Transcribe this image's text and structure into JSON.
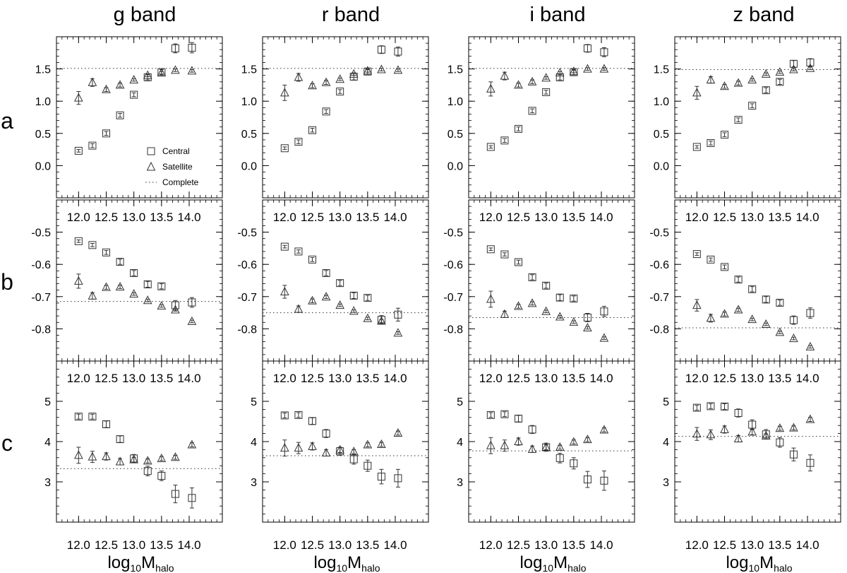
{
  "chart_data": {
    "type": "scatter",
    "panel_grid": {
      "rows": 3,
      "cols": 4
    },
    "columns": [
      "g band",
      "r band",
      "i band",
      "z band"
    ],
    "rows": [
      "a",
      "b",
      "c"
    ],
    "xlabel": {
      "main": "log",
      "sub": "10",
      "var": "M",
      "var_sub": "halo"
    },
    "x_ticks": [
      "12.0",
      "12.5",
      "13.0",
      "13.5",
      "14.0"
    ],
    "xlim": [
      11.6,
      14.6
    ],
    "row_axes": [
      {
        "ylim": [
          -0.5,
          2.0
        ],
        "yticks": [
          0.0,
          0.5,
          1.0,
          1.5
        ],
        "ytick_labels": [
          "0.0",
          "0.5",
          "1.0",
          "1.5"
        ],
        "minor_step": 0.1
      },
      {
        "ylim": [
          -0.9,
          -0.4
        ],
        "yticks": [
          -0.8,
          -0.7,
          -0.6,
          -0.5
        ],
        "ytick_labels": [
          "-0.8",
          "-0.7",
          "-0.6",
          "-0.5"
        ],
        "minor_step": 0.02
      },
      {
        "ylim": [
          2.0,
          6.0
        ],
        "yticks": [
          3,
          4,
          5
        ],
        "ytick_labels": [
          "3",
          "4",
          "5"
        ],
        "minor_step": 0.2
      }
    ],
    "inner_tick_rows": [
      1,
      2
    ],
    "legend": {
      "location": "a/g band panel, lower right",
      "entries": [
        {
          "marker": "square",
          "label": "Central"
        },
        {
          "marker": "triangle",
          "label": "Satellite"
        },
        {
          "marker": "dotted-line",
          "label": "Complete"
        }
      ]
    },
    "central_x": [
      12.0,
      12.25,
      12.5,
      12.75,
      13.0,
      13.25,
      13.5,
      13.75,
      14.05
    ],
    "satellite_x": [
      12.0,
      12.25,
      12.5,
      12.75,
      13.0,
      13.25,
      13.5,
      13.75,
      14.05
    ],
    "panels": [
      {
        "row": 0,
        "col": 0,
        "complete": 1.51,
        "central": {
          "y": [
            0.23,
            0.31,
            0.5,
            0.78,
            1.1,
            1.37,
            1.45,
            1.82,
            1.83
          ],
          "err": [
            0.02,
            0.03,
            0.03,
            0.03,
            0.03,
            0.04,
            0.04,
            0.07,
            0.08
          ]
        },
        "satellite": {
          "y": [
            1.05,
            1.29,
            1.18,
            1.25,
            1.33,
            1.4,
            1.44,
            1.48,
            1.47
          ],
          "err": [
            0.1,
            0.06,
            0.03,
            0.03,
            0.02,
            0.02,
            0.02,
            0.02,
            0.02
          ]
        }
      },
      {
        "row": 0,
        "col": 1,
        "complete": 1.51,
        "central": {
          "y": [
            0.27,
            0.37,
            0.55,
            0.84,
            1.15,
            1.38,
            1.46,
            1.8,
            1.77
          ],
          "err": [
            0.02,
            0.03,
            0.03,
            0.03,
            0.03,
            0.05,
            0.04,
            0.06,
            0.07
          ]
        },
        "satellite": {
          "y": [
            1.13,
            1.37,
            1.24,
            1.29,
            1.34,
            1.42,
            1.47,
            1.49,
            1.48
          ],
          "err": [
            0.12,
            0.06,
            0.03,
            0.03,
            0.02,
            0.02,
            0.02,
            0.02,
            0.02
          ]
        }
      },
      {
        "row": 0,
        "col": 2,
        "complete": 1.51,
        "central": {
          "y": [
            0.29,
            0.39,
            0.57,
            0.85,
            1.14,
            1.37,
            1.45,
            1.82,
            1.76
          ],
          "err": [
            0.02,
            0.03,
            0.03,
            0.03,
            0.03,
            0.04,
            0.04,
            0.06,
            0.07
          ]
        },
        "satellite": {
          "y": [
            1.19,
            1.39,
            1.25,
            1.3,
            1.36,
            1.44,
            1.46,
            1.5,
            1.5
          ],
          "err": [
            0.11,
            0.06,
            0.03,
            0.03,
            0.02,
            0.02,
            0.02,
            0.02,
            0.02
          ]
        }
      },
      {
        "row": 0,
        "col": 3,
        "complete": 1.49,
        "central": {
          "y": [
            0.29,
            0.35,
            0.48,
            0.71,
            0.93,
            1.17,
            1.3,
            1.58,
            1.6
          ],
          "err": [
            0.02,
            0.03,
            0.03,
            0.03,
            0.03,
            0.04,
            0.04,
            0.05,
            0.06
          ]
        },
        "satellite": {
          "y": [
            1.13,
            1.33,
            1.23,
            1.28,
            1.33,
            1.42,
            1.45,
            1.49,
            1.51
          ],
          "err": [
            0.1,
            0.05,
            0.03,
            0.03,
            0.02,
            0.02,
            0.02,
            0.02,
            0.02
          ]
        }
      },
      {
        "row": 1,
        "col": 0,
        "complete": -0.715,
        "central": {
          "y": [
            -0.528,
            -0.54,
            -0.563,
            -0.592,
            -0.627,
            -0.662,
            -0.668,
            -0.727,
            -0.718
          ],
          "err": [
            0.004,
            0.005,
            0.006,
            0.008,
            0.008,
            0.009,
            0.008,
            0.015,
            0.015
          ]
        },
        "satellite": {
          "y": [
            -0.652,
            -0.698,
            -0.671,
            -0.67,
            -0.692,
            -0.712,
            -0.729,
            -0.741,
            -0.777
          ],
          "err": [
            0.022,
            0.01,
            0.006,
            0.005,
            0.004,
            0.004,
            0.004,
            0.004,
            0.004
          ]
        }
      },
      {
        "row": 1,
        "col": 1,
        "complete": -0.75,
        "central": {
          "y": [
            -0.545,
            -0.56,
            -0.585,
            -0.627,
            -0.658,
            -0.697,
            -0.704,
            -0.772,
            -0.756
          ],
          "err": [
            0.004,
            0.005,
            0.006,
            0.008,
            0.008,
            0.009,
            0.008,
            0.013,
            0.02
          ]
        },
        "satellite": {
          "y": [
            -0.685,
            -0.739,
            -0.713,
            -0.701,
            -0.727,
            -0.745,
            -0.768,
            -0.776,
            -0.813
          ],
          "err": [
            0.02,
            0.01,
            0.006,
            0.005,
            0.004,
            0.004,
            0.004,
            0.004,
            0.004
          ]
        }
      },
      {
        "row": 1,
        "col": 2,
        "complete": -0.765,
        "central": {
          "y": [
            -0.553,
            -0.569,
            -0.593,
            -0.64,
            -0.666,
            -0.703,
            -0.706,
            -0.765,
            -0.746
          ],
          "err": [
            0.004,
            0.005,
            0.006,
            0.008,
            0.008,
            0.009,
            0.008,
            0.013,
            0.016
          ]
        },
        "satellite": {
          "y": [
            -0.708,
            -0.755,
            -0.73,
            -0.721,
            -0.746,
            -0.763,
            -0.779,
            -0.797,
            -0.829
          ],
          "err": [
            0.025,
            0.01,
            0.006,
            0.005,
            0.004,
            0.004,
            0.004,
            0.004,
            0.004
          ]
        }
      },
      {
        "row": 1,
        "col": 3,
        "complete": -0.797,
        "central": {
          "y": [
            -0.568,
            -0.585,
            -0.608,
            -0.647,
            -0.677,
            -0.709,
            -0.719,
            -0.773,
            -0.751
          ],
          "err": [
            0.004,
            0.005,
            0.006,
            0.008,
            0.008,
            0.009,
            0.008,
            0.013,
            0.016
          ]
        },
        "satellite": {
          "y": [
            -0.727,
            -0.767,
            -0.754,
            -0.741,
            -0.771,
            -0.786,
            -0.811,
            -0.83,
            -0.856
          ],
          "err": [
            0.018,
            0.012,
            0.006,
            0.005,
            0.004,
            0.004,
            0.004,
            0.004,
            0.004
          ]
        }
      },
      {
        "row": 2,
        "col": 0,
        "complete": 3.33,
        "central": {
          "y": [
            4.62,
            4.62,
            4.43,
            4.06,
            3.58,
            3.27,
            3.15,
            2.7,
            2.6
          ],
          "err": [
            0.06,
            0.06,
            0.08,
            0.08,
            0.1,
            0.12,
            0.12,
            0.22,
            0.25
          ]
        },
        "satellite": {
          "y": [
            3.66,
            3.62,
            3.63,
            3.5,
            3.55,
            3.52,
            3.58,
            3.61,
            3.92
          ],
          "err": [
            0.2,
            0.14,
            0.09,
            0.08,
            0.06,
            0.05,
            0.05,
            0.05,
            0.05
          ]
        }
      },
      {
        "row": 2,
        "col": 1,
        "complete": 3.65,
        "central": {
          "y": [
            4.65,
            4.66,
            4.51,
            4.2,
            3.76,
            3.56,
            3.4,
            3.13,
            3.09
          ],
          "err": [
            0.06,
            0.06,
            0.08,
            0.1,
            0.1,
            0.12,
            0.14,
            0.18,
            0.22
          ]
        },
        "satellite": {
          "y": [
            3.84,
            3.84,
            3.88,
            3.72,
            3.79,
            3.75,
            3.92,
            3.93,
            4.21
          ],
          "err": [
            0.2,
            0.14,
            0.09,
            0.08,
            0.06,
            0.05,
            0.05,
            0.05,
            0.05
          ]
        }
      },
      {
        "row": 2,
        "col": 2,
        "complete": 3.77,
        "central": {
          "y": [
            4.66,
            4.68,
            4.57,
            4.3,
            3.86,
            3.59,
            3.46,
            3.06,
            3.03
          ],
          "err": [
            0.06,
            0.06,
            0.08,
            0.1,
            0.1,
            0.12,
            0.14,
            0.2,
            0.24
          ]
        },
        "satellite": {
          "y": [
            3.9,
            3.9,
            4.0,
            3.81,
            3.86,
            3.86,
            3.99,
            4.05,
            4.29
          ],
          "err": [
            0.2,
            0.14,
            0.09,
            0.08,
            0.06,
            0.05,
            0.05,
            0.05,
            0.05
          ]
        }
      },
      {
        "row": 2,
        "col": 3,
        "complete": 4.13,
        "central": {
          "y": [
            4.84,
            4.88,
            4.87,
            4.71,
            4.42,
            4.18,
            3.98,
            3.68,
            3.47
          ],
          "err": [
            0.06,
            0.06,
            0.07,
            0.1,
            0.12,
            0.12,
            0.12,
            0.16,
            0.2
          ]
        },
        "satellite": {
          "y": [
            4.19,
            4.17,
            4.3,
            4.07,
            4.24,
            4.14,
            4.33,
            4.34,
            4.55
          ],
          "err": [
            0.16,
            0.12,
            0.09,
            0.08,
            0.07,
            0.05,
            0.05,
            0.05,
            0.05
          ]
        }
      }
    ]
  }
}
